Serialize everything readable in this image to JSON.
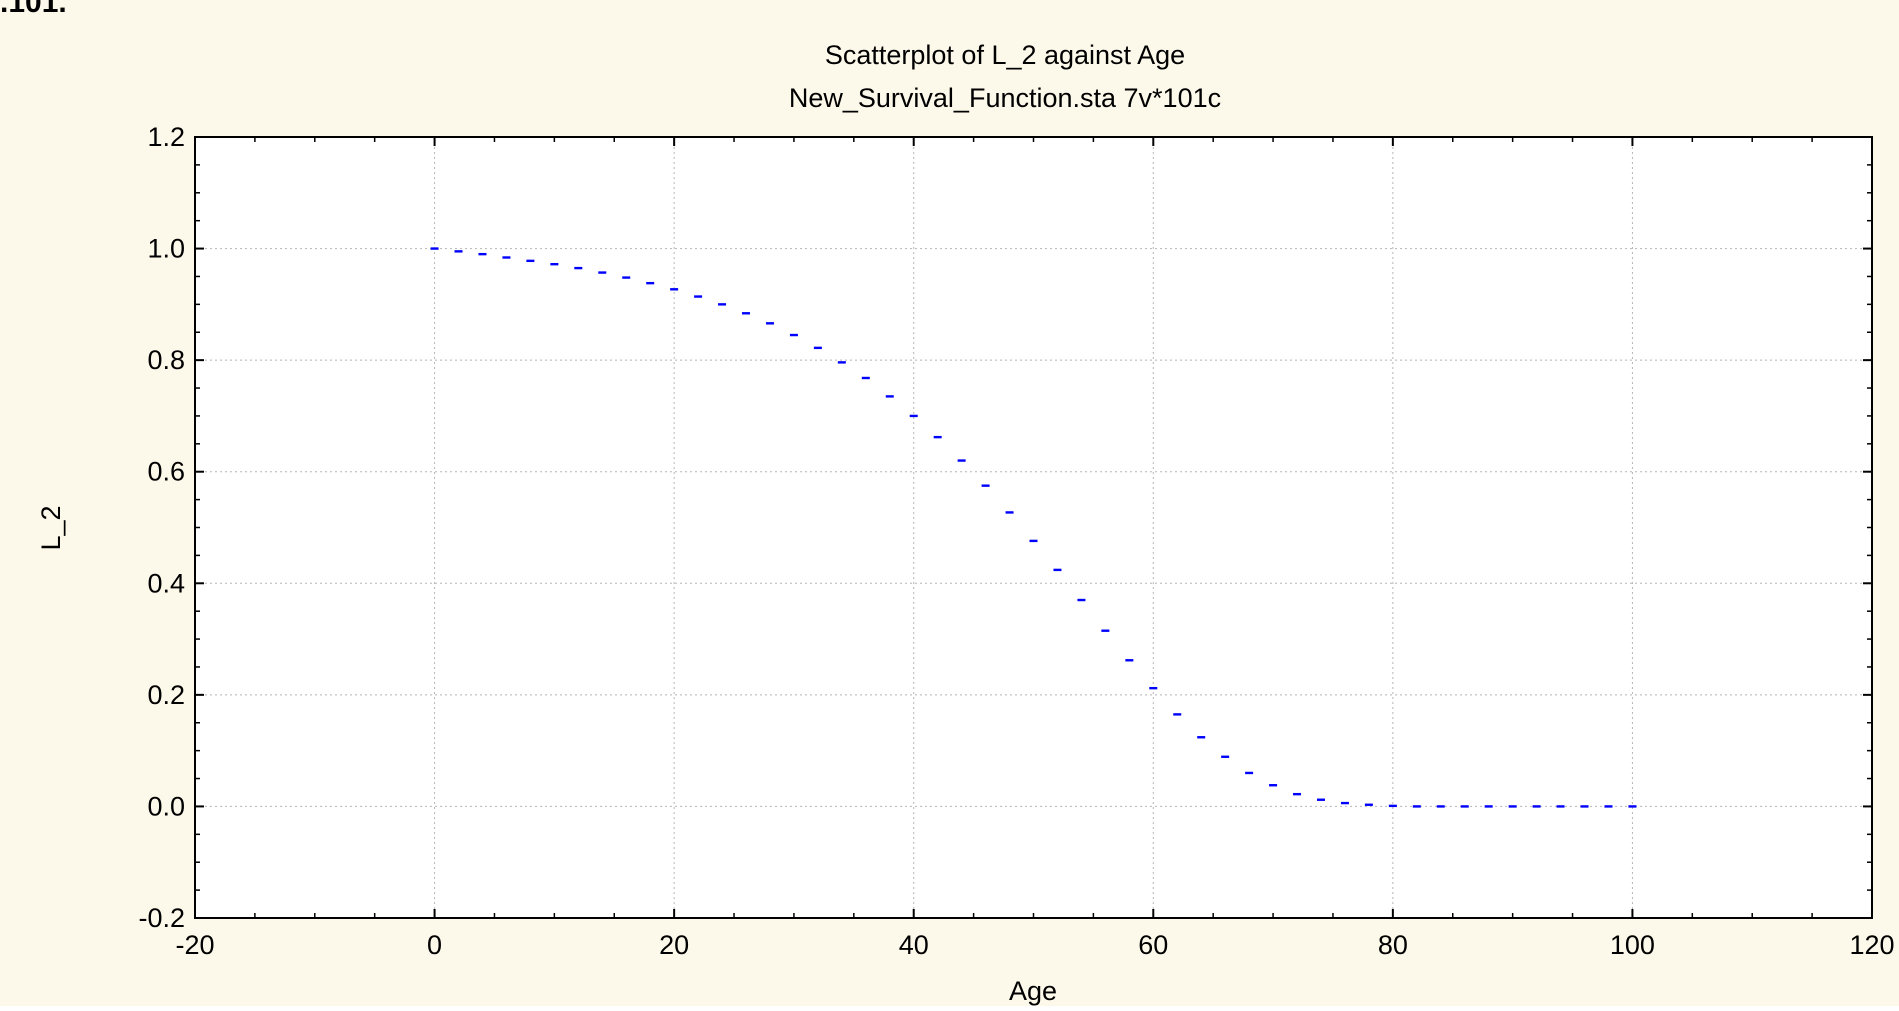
{
  "page": {
    "top_text": ".101."
  },
  "chart_data": {
    "type": "scatter",
    "title": "Scatterplot of L_2 against Age",
    "subtitle": "New_Survival_Function.sta 7v*101c",
    "xlabel": "Age",
    "ylabel": "L_2",
    "xlim": [
      -20,
      120
    ],
    "ylim": [
      -0.2,
      1.2
    ],
    "xticks": [
      -20,
      0,
      20,
      40,
      60,
      80,
      100,
      120
    ],
    "yticks": [
      -0.2,
      0.0,
      0.2,
      0.4,
      0.6,
      0.8,
      1.0,
      1.2
    ],
    "xtick_labels": [
      "-20",
      "0",
      "20",
      "40",
      "60",
      "80",
      "100",
      "120"
    ],
    "ytick_labels": [
      "-0.2",
      "0.0",
      "0.2",
      "0.4",
      "0.6",
      "0.8",
      "1.0",
      "1.2"
    ],
    "grid": true,
    "series": [
      {
        "color": "#0000ff",
        "x": [
          0,
          2,
          4,
          6,
          8,
          10,
          12,
          14,
          16,
          18,
          20,
          22,
          24,
          26,
          28,
          30,
          32,
          34,
          36,
          38,
          40,
          42,
          44,
          46,
          48,
          50,
          52,
          54,
          56,
          58,
          60,
          62,
          64,
          66,
          68,
          70,
          72,
          74,
          76,
          78,
          80,
          82,
          84,
          86,
          88,
          90,
          92,
          94,
          96,
          98,
          100
        ],
        "y": [
          1.0,
          0.995,
          0.99,
          0.984,
          0.978,
          0.972,
          0.965,
          0.957,
          0.948,
          0.938,
          0.927,
          0.914,
          0.9,
          0.884,
          0.866,
          0.845,
          0.822,
          0.796,
          0.768,
          0.735,
          0.7,
          0.662,
          0.62,
          0.575,
          0.527,
          0.476,
          0.424,
          0.37,
          0.315,
          0.262,
          0.212,
          0.165,
          0.124,
          0.089,
          0.06,
          0.038,
          0.022,
          0.012,
          0.006,
          0.003,
          0.001,
          0.0,
          0.0,
          0.0,
          0.0,
          0.0,
          0.0,
          0.0,
          0.0,
          0.0,
          0.0
        ]
      }
    ]
  }
}
